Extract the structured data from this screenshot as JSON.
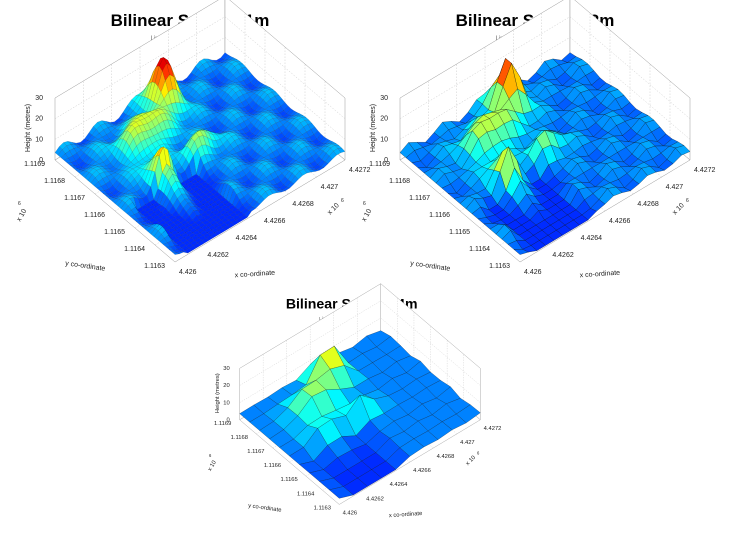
{
  "panels": [
    {
      "title": "Bilinear Surface 1m",
      "subtitle": "Linear Surface Interpolation Using a 1m Grid",
      "z_label": "Height (metres)",
      "y_label": "y co-ordinate",
      "x_label": "x co-ordinate",
      "z_ticks": [
        "0",
        "10",
        "20",
        "30"
      ],
      "y_ticks": [
        "1.1169",
        "1.1168",
        "1.1167",
        "1.1166",
        "1.1165",
        "1.1164",
        "1.1163"
      ],
      "x_ticks": [
        "4.426",
        "4.4262",
        "4.4264",
        "4.4266",
        "4.4268",
        "4.427",
        "4.4272"
      ],
      "y_exponent": "x 10",
      "y_exponent_power": "6",
      "x_exponent": "x 10",
      "x_exponent_power": "6"
    },
    {
      "title": "Bilinear Surface 2m",
      "subtitle": "Linear Surface Interpolation Using a 2m Grid",
      "z_label": "Height (metres)",
      "y_label": "y co-ordinate",
      "x_label": "x co-ordinate",
      "z_ticks": [
        "0",
        "10",
        "20",
        "30"
      ],
      "y_ticks": [
        "1.1169",
        "1.1168",
        "1.1167",
        "1.1166",
        "1.1165",
        "1.1164",
        "1.1163"
      ],
      "x_ticks": [
        "4.426",
        "4.4262",
        "4.4264",
        "4.4266",
        "4.4268",
        "4.427",
        "4.4272"
      ],
      "y_exponent": "x 10",
      "y_exponent_power": "6",
      "x_exponent": "x 10",
      "x_exponent_power": "6"
    },
    {
      "title": "Bilinear Surface 4m",
      "subtitle": "Linear Surface Interpolation Using a 4m Grid",
      "z_label": "Height (metres)",
      "y_label": "y co-ordinate",
      "x_label": "x co-ordinate",
      "z_ticks": [
        "0",
        "10",
        "20",
        "30"
      ],
      "y_ticks": [
        "1.1169",
        "1.1168",
        "1.1167",
        "1.1166",
        "1.1165",
        "1.1164",
        "1.1163"
      ],
      "x_ticks": [
        "4.426",
        "4.4262",
        "4.4264",
        "4.4266",
        "4.4268",
        "4.427",
        "4.4272"
      ],
      "y_exponent": "x 10",
      "y_exponent_power": "6",
      "x_exponent": "x 10",
      "x_exponent_power": "6"
    }
  ]
}
